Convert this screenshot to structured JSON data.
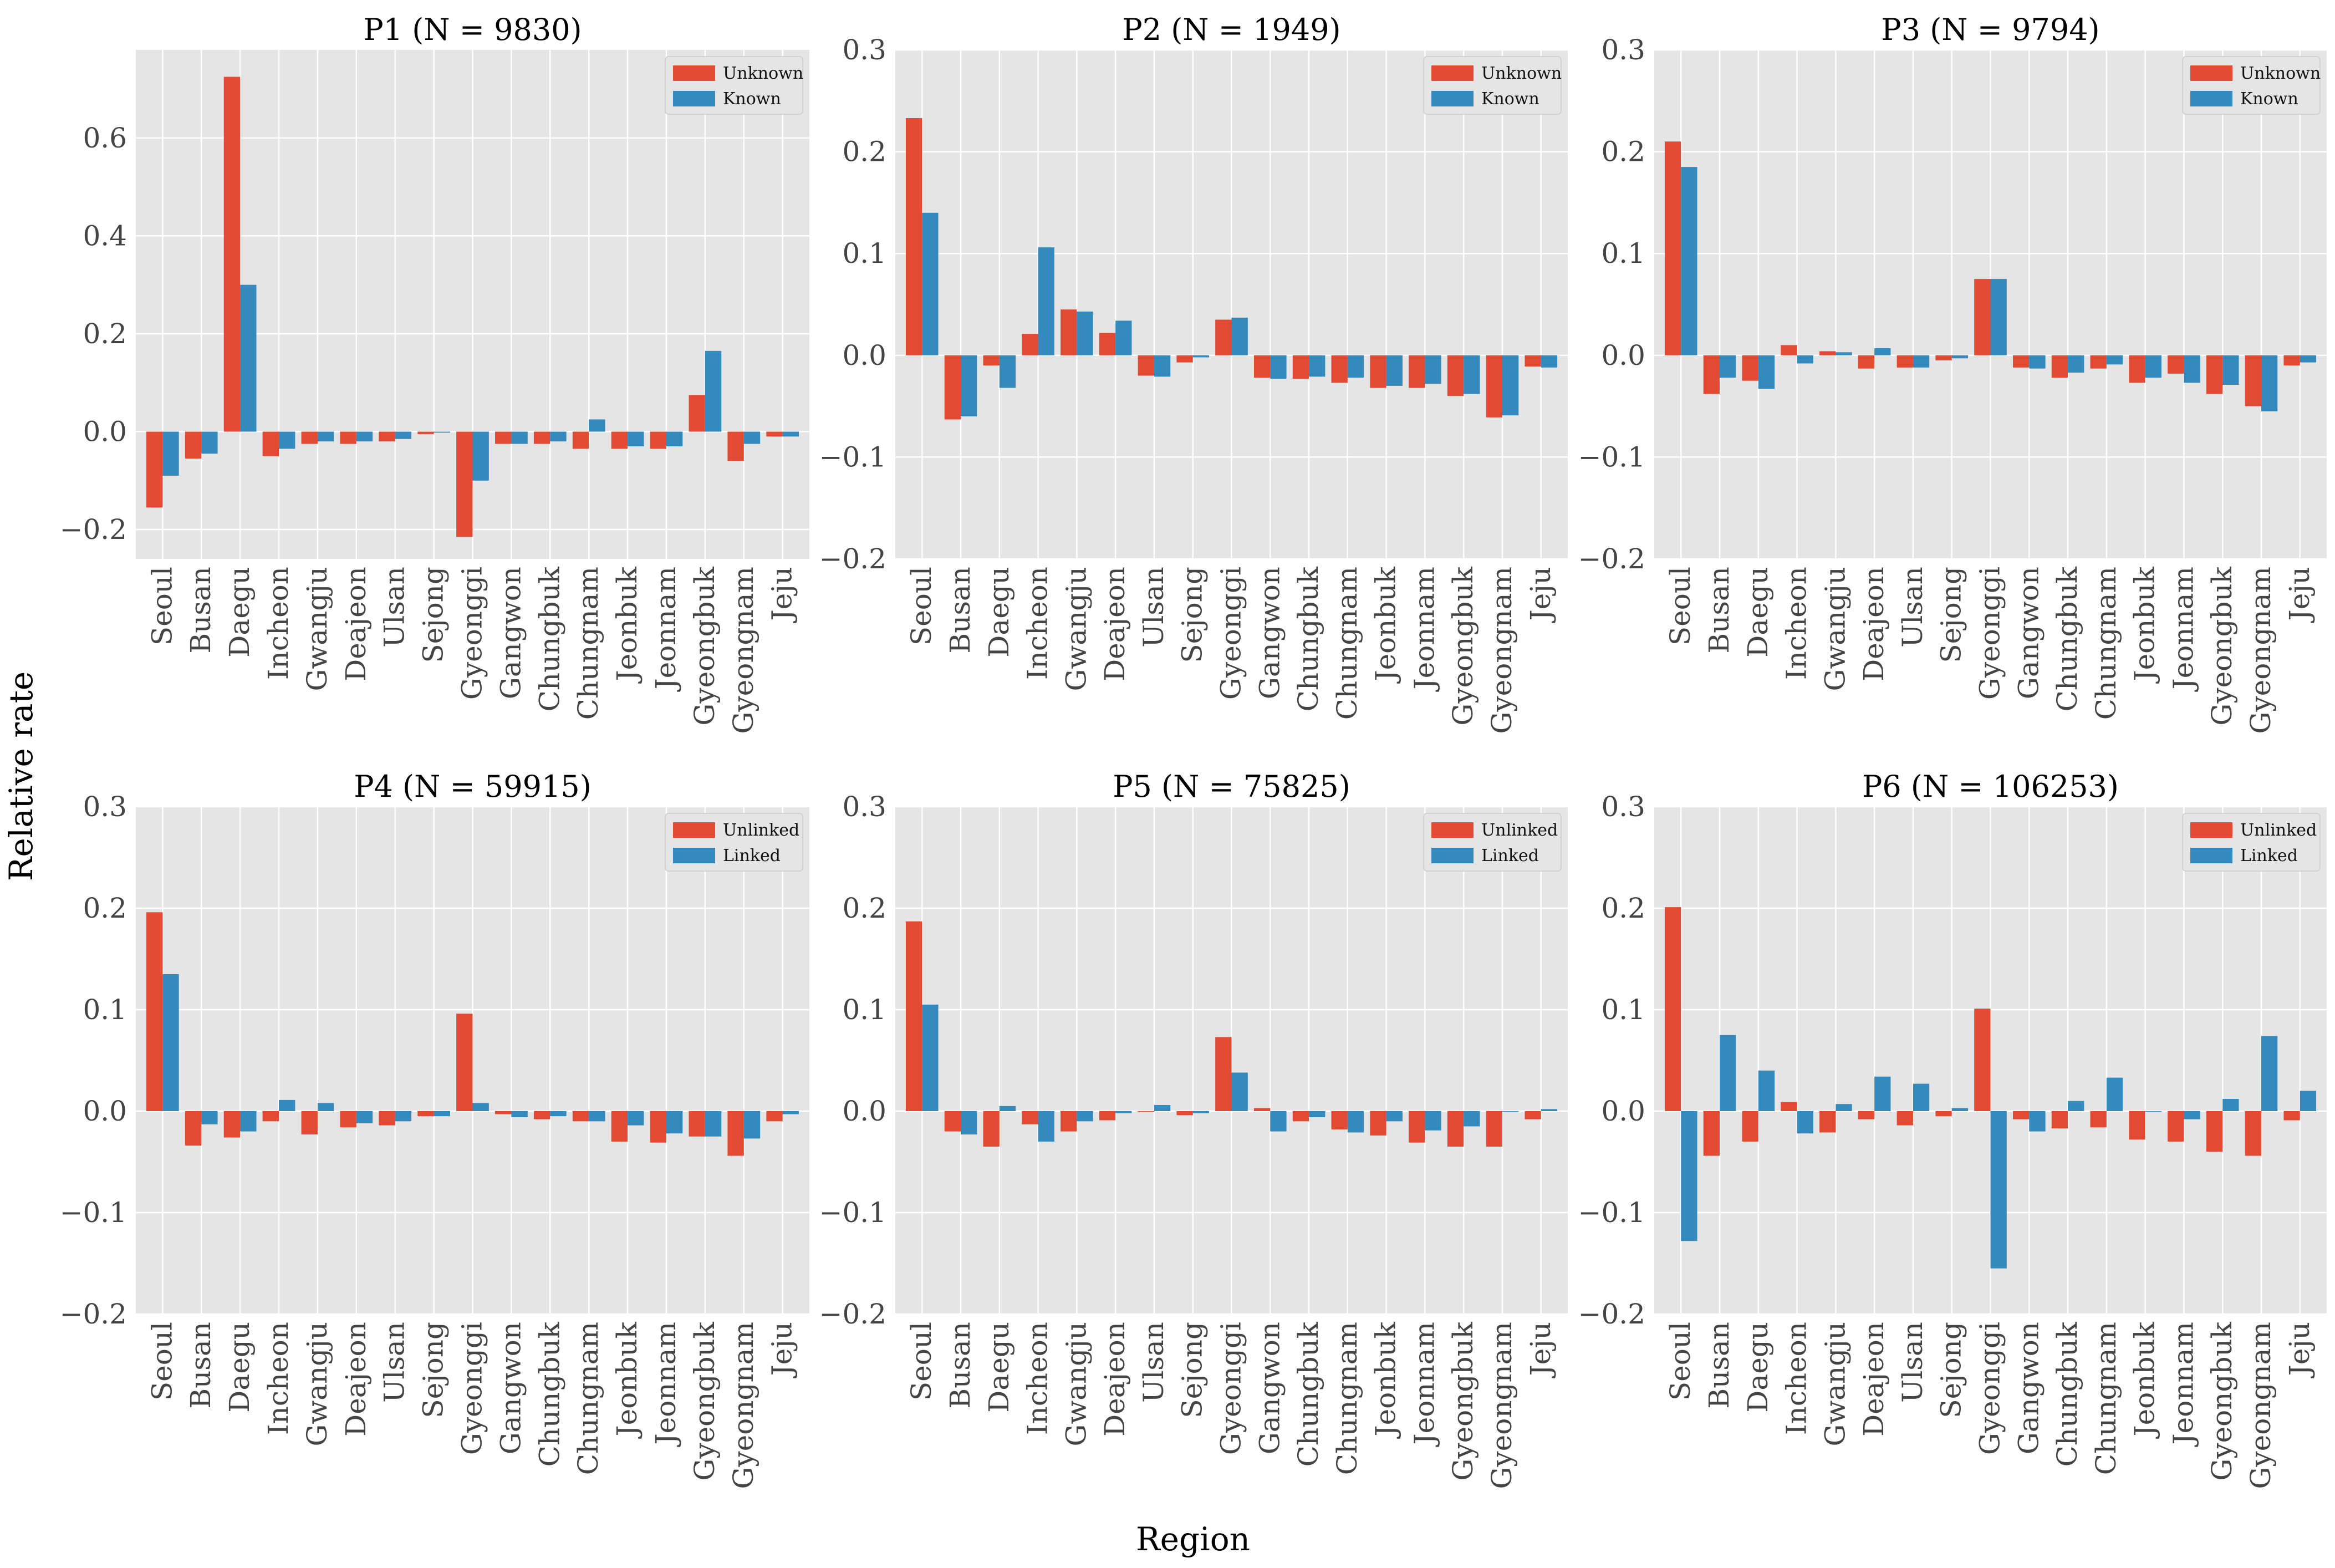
{
  "figure": {
    "ylabel": "Relative rate",
    "xlabel": "Region",
    "colors": {
      "first": "#E24A33",
      "second": "#348ABD",
      "panel_bg": "#E5E5E5"
    }
  },
  "chart_data": [
    {
      "type": "bar",
      "title": "P1 (N = 9830)",
      "categories": [
        "Seoul",
        "Busan",
        "Daegu",
        "Incheon",
        "Gwangju",
        "Deajeon",
        "Ulsan",
        "Sejong",
        "Gyeonggi",
        "Gangwon",
        "Chungbuk",
        "Chungnam",
        "Jeonbuk",
        "Jeonnam",
        "Gyeongbuk",
        "Gyeongnam",
        "Jeju"
      ],
      "series": [
        {
          "name": "Unknown",
          "values": [
            -0.155,
            -0.055,
            0.725,
            -0.05,
            -0.025,
            -0.025,
            -0.02,
            -0.005,
            -0.215,
            -0.025,
            -0.025,
            -0.035,
            -0.035,
            -0.035,
            0.075,
            -0.06,
            -0.01
          ]
        },
        {
          "name": "Known",
          "values": [
            -0.09,
            -0.045,
            0.3,
            -0.035,
            -0.02,
            -0.02,
            -0.015,
            -0.002,
            -0.1,
            -0.025,
            -0.02,
            0.025,
            -0.03,
            -0.03,
            0.165,
            -0.025,
            -0.01
          ]
        }
      ],
      "ylim": [
        -0.26,
        0.78
      ],
      "yticks": [
        -0.2,
        0.0,
        0.2,
        0.4,
        0.6
      ],
      "ytick_labels": [
        "−0.2",
        "0.0",
        "0.2",
        "0.4",
        "0.6"
      ],
      "legend": "top-right"
    },
    {
      "type": "bar",
      "title": "P2 (N = 1949)",
      "categories": [
        "Seoul",
        "Busan",
        "Daegu",
        "Incheon",
        "Gwangju",
        "Deajeon",
        "Ulsan",
        "Sejong",
        "Gyeonggi",
        "Gangwon",
        "Chungbuk",
        "Chungnam",
        "Jeonbuk",
        "Jeonnam",
        "Gyeongbuk",
        "Gyeongnam",
        "Jeju"
      ],
      "series": [
        {
          "name": "Unknown",
          "values": [
            0.233,
            -0.063,
            -0.01,
            0.021,
            0.045,
            0.022,
            -0.02,
            -0.007,
            0.035,
            -0.022,
            -0.023,
            -0.027,
            -0.032,
            -0.032,
            -0.04,
            -0.061,
            -0.011
          ]
        },
        {
          "name": "Known",
          "values": [
            0.14,
            -0.06,
            -0.032,
            0.106,
            0.043,
            0.034,
            -0.021,
            -0.002,
            0.037,
            -0.023,
            -0.021,
            -0.022,
            -0.03,
            -0.028,
            -0.038,
            -0.059,
            -0.012
          ]
        }
      ],
      "ylim": [
        -0.2,
        0.3
      ],
      "yticks": [
        -0.2,
        -0.1,
        0.0,
        0.1,
        0.2,
        0.3
      ],
      "ytick_labels": [
        "−0.2",
        "−0.1",
        "0.0",
        "0.1",
        "0.2",
        "0.3"
      ],
      "legend": "top-right"
    },
    {
      "type": "bar",
      "title": "P3 (N = 9794)",
      "categories": [
        "Seoul",
        "Busan",
        "Daegu",
        "Incheon",
        "Gwangju",
        "Deajeon",
        "Ulsan",
        "Sejong",
        "Gyeonggi",
        "Gangwon",
        "Chungbuk",
        "Chungnam",
        "Jeonbuk",
        "Jeonnam",
        "Gyeongbuk",
        "Gyeongnam",
        "Jeju"
      ],
      "series": [
        {
          "name": "Unknown",
          "values": [
            0.21,
            -0.038,
            -0.025,
            0.01,
            0.004,
            -0.013,
            -0.012,
            -0.005,
            0.075,
            -0.012,
            -0.022,
            -0.013,
            -0.027,
            -0.018,
            -0.038,
            -0.05,
            -0.01
          ]
        },
        {
          "name": "Known",
          "values": [
            0.185,
            -0.022,
            -0.033,
            -0.008,
            0.003,
            0.007,
            -0.012,
            -0.003,
            0.075,
            -0.013,
            -0.017,
            -0.009,
            -0.022,
            -0.027,
            -0.029,
            -0.055,
            -0.007
          ]
        }
      ],
      "ylim": [
        -0.2,
        0.3
      ],
      "yticks": [
        -0.2,
        -0.1,
        0.0,
        0.1,
        0.2,
        0.3
      ],
      "ytick_labels": [
        "−0.2",
        "−0.1",
        "0.0",
        "0.1",
        "0.2",
        "0.3"
      ],
      "legend": "top-right"
    },
    {
      "type": "bar",
      "title": "P4 (N = 59915)",
      "categories": [
        "Seoul",
        "Busan",
        "Daegu",
        "Incheon",
        "Gwangju",
        "Deajeon",
        "Ulsan",
        "Sejong",
        "Gyeonggi",
        "Gangwon",
        "Chungbuk",
        "Chungnam",
        "Jeonbuk",
        "Jeonnam",
        "Gyeongbuk",
        "Gyeongnam",
        "Jeju"
      ],
      "series": [
        {
          "name": "Unlinked",
          "values": [
            0.196,
            -0.034,
            -0.026,
            -0.01,
            -0.023,
            -0.016,
            -0.014,
            -0.005,
            0.096,
            -0.003,
            -0.008,
            -0.01,
            -0.03,
            -0.031,
            -0.025,
            -0.044,
            -0.01
          ]
        },
        {
          "name": "Linked",
          "values": [
            0.135,
            -0.013,
            -0.02,
            0.011,
            0.008,
            -0.012,
            -0.01,
            -0.005,
            0.008,
            -0.006,
            -0.005,
            -0.01,
            -0.014,
            -0.022,
            -0.025,
            -0.027,
            -0.003
          ]
        }
      ],
      "ylim": [
        -0.2,
        0.3
      ],
      "yticks": [
        -0.2,
        -0.1,
        0.0,
        0.1,
        0.2,
        0.3
      ],
      "ytick_labels": [
        "−0.2",
        "−0.1",
        "0.0",
        "0.1",
        "0.2",
        "0.3"
      ],
      "legend": "top-right"
    },
    {
      "type": "bar",
      "title": "P5 (N = 75825)",
      "categories": [
        "Seoul",
        "Busan",
        "Daegu",
        "Incheon",
        "Gwangju",
        "Deajeon",
        "Ulsan",
        "Sejong",
        "Gyeonggi",
        "Gangwon",
        "Chungbuk",
        "Chungnam",
        "Jeonbuk",
        "Jeonnam",
        "Gyeongbuk",
        "Gyeongnam",
        "Jeju"
      ],
      "series": [
        {
          "name": "Unlinked",
          "values": [
            0.187,
            -0.02,
            -0.035,
            -0.013,
            -0.02,
            -0.009,
            0.0,
            -0.004,
            0.073,
            0.003,
            -0.01,
            -0.018,
            -0.024,
            -0.031,
            -0.035,
            -0.035,
            -0.008
          ]
        },
        {
          "name": "Linked",
          "values": [
            0.105,
            -0.023,
            0.005,
            -0.03,
            -0.01,
            -0.002,
            0.006,
            -0.002,
            0.038,
            -0.02,
            -0.006,
            -0.021,
            -0.01,
            -0.019,
            -0.015,
            0.0,
            0.002
          ]
        }
      ],
      "ylim": [
        -0.2,
        0.3
      ],
      "yticks": [
        -0.2,
        -0.1,
        0.0,
        0.1,
        0.2,
        0.3
      ],
      "ytick_labels": [
        "−0.2",
        "−0.1",
        "0.0",
        "0.1",
        "0.2",
        "0.3"
      ],
      "legend": "top-right"
    },
    {
      "type": "bar",
      "title": "P6 (N = 106253)",
      "categories": [
        "Seoul",
        "Busan",
        "Daegu",
        "Incheon",
        "Gwangju",
        "Deajeon",
        "Ulsan",
        "Sejong",
        "Gyeonggi",
        "Gangwon",
        "Chungbuk",
        "Chungnam",
        "Jeonbuk",
        "Jeonnam",
        "Gyeongbuk",
        "Gyeongnam",
        "Jeju"
      ],
      "series": [
        {
          "name": "Unlinked",
          "values": [
            0.201,
            -0.044,
            -0.03,
            0.009,
            -0.021,
            -0.008,
            -0.014,
            -0.005,
            0.101,
            -0.008,
            -0.017,
            -0.016,
            -0.028,
            -0.03,
            -0.04,
            -0.044,
            -0.009
          ]
        },
        {
          "name": "Linked",
          "values": [
            -0.128,
            0.075,
            0.04,
            -0.022,
            0.007,
            0.034,
            0.027,
            0.003,
            -0.155,
            -0.02,
            0.01,
            0.033,
            0.0,
            -0.008,
            0.012,
            0.074,
            0.02
          ]
        }
      ],
      "ylim": [
        -0.2,
        0.3
      ],
      "yticks": [
        -0.2,
        -0.1,
        0.0,
        0.1,
        0.2,
        0.3
      ],
      "ytick_labels": [
        "−0.2",
        "−0.1",
        "0.0",
        "0.1",
        "0.2",
        "0.3"
      ],
      "legend": "top-right"
    }
  ]
}
